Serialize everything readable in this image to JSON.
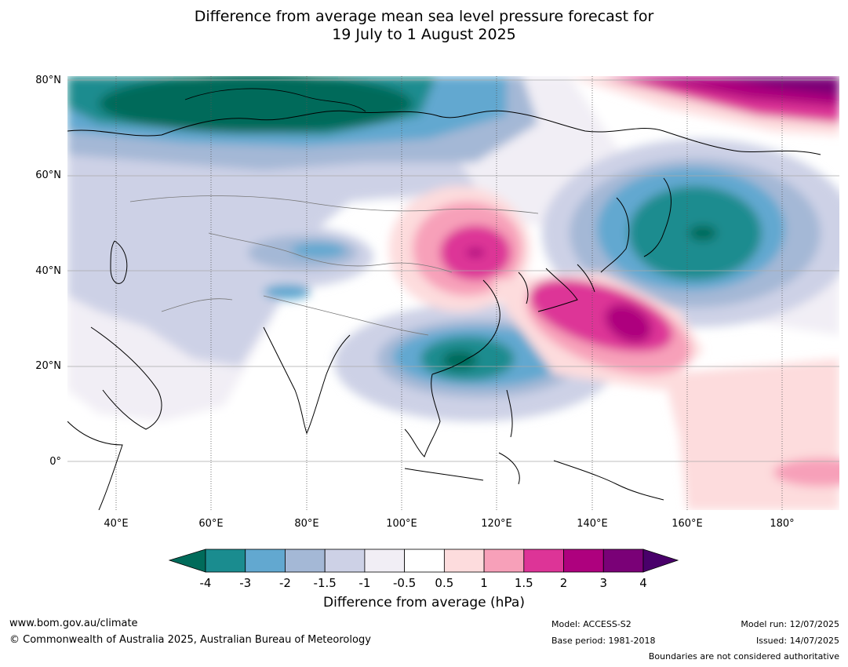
{
  "title_line1": "Difference from average mean sea level pressure forecast for",
  "title_line2": "19 July to 1 August 2025",
  "lat_labels": [
    "80°N",
    "60°N",
    "40°N",
    "20°N",
    "0°"
  ],
  "lon_labels": [
    "40°E",
    "60°E",
    "80°E",
    "100°E",
    "120°E",
    "140°E",
    "160°E",
    "180°"
  ],
  "colorbar": {
    "title": "Difference from average (hPa)",
    "ticks": [
      "-4",
      "-3",
      "-2",
      "-1.5",
      "-1",
      "-0.5",
      "0.5",
      "1",
      "1.5",
      "2",
      "3",
      "4"
    ],
    "colors": [
      "#1a8c8f",
      "#62a8d0",
      "#a4b8d6",
      "#cdd1e6",
      "#f1eef5",
      "#ffffff",
      "#fddcdd",
      "#f7a0b9",
      "#dd3497",
      "#ae017e",
      "#7a0177"
    ],
    "under_color": "#006b5a",
    "over_color": "#49006a"
  },
  "footer": {
    "website": "www.bom.gov.au/climate",
    "copyright": "© Commonwealth of Australia 2025, Australian Bureau of Meteorology",
    "model": "Model: ACCESS-S2",
    "base_period": "Base period: 1981-2018",
    "model_run": "Model run: 12/07/2025",
    "issued": "Issued: 14/07/2025",
    "boundaries": "Boundaries are not considered authoritative"
  }
}
